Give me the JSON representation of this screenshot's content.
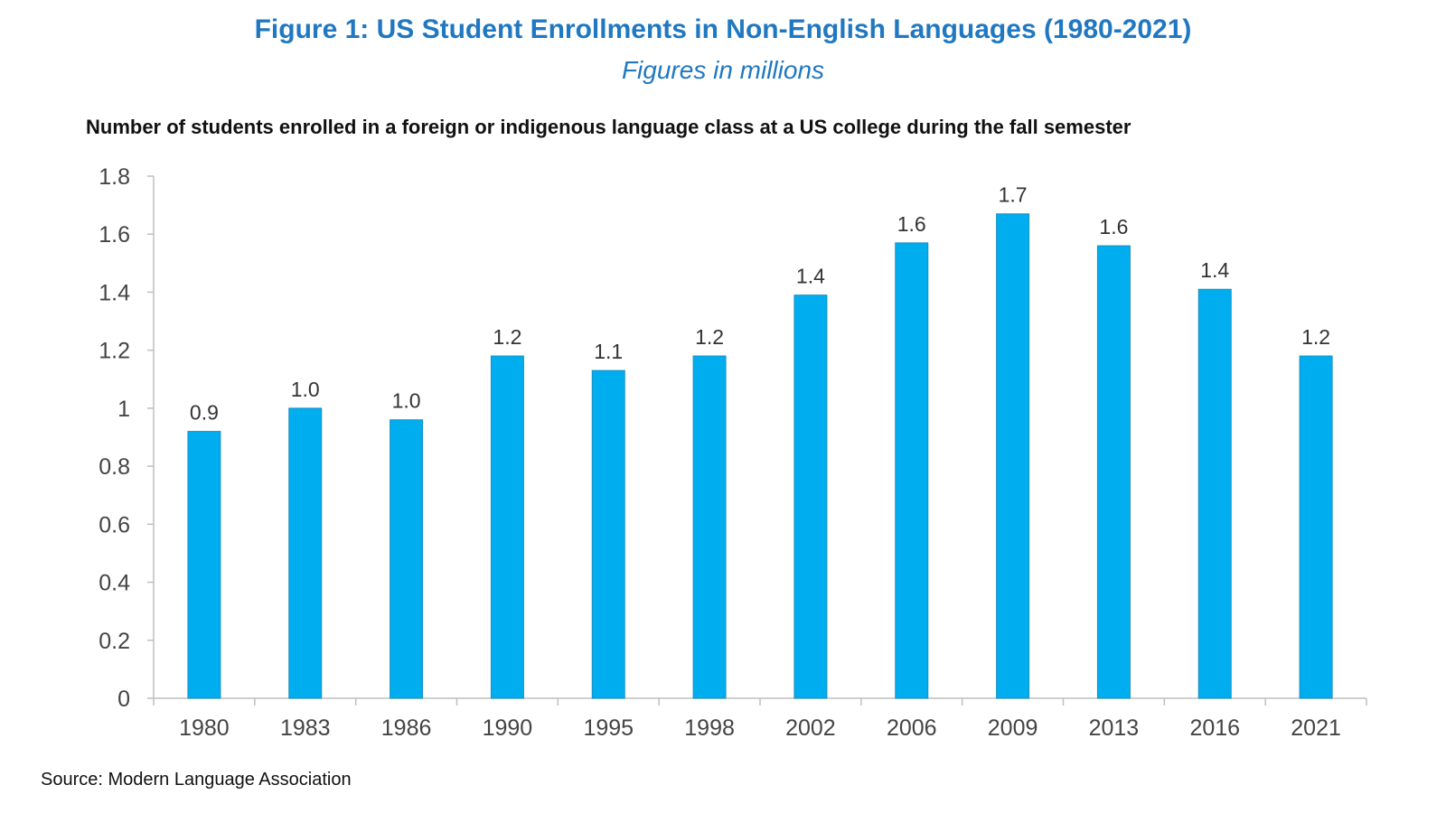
{
  "figure": {
    "title": "Figure 1: US Student Enrollments in Non-English Languages (1980-2021)",
    "subtitle": "Figures in millions",
    "source": "Source: Modern Language Association"
  },
  "chart_data": {
    "type": "bar",
    "title": "Number of students enrolled in a foreign or indigenous language class at a US college during the fall semester",
    "xlabel": "",
    "ylabel": "",
    "categories": [
      "1980",
      "1983",
      "1986",
      "1990",
      "1995",
      "1998",
      "2002",
      "2006",
      "2009",
      "2013",
      "2016",
      "2021"
    ],
    "values": [
      0.92,
      1.0,
      0.96,
      1.18,
      1.13,
      1.18,
      1.39,
      1.57,
      1.67,
      1.56,
      1.41,
      1.18
    ],
    "data_labels": [
      "0.9",
      "1.0",
      "1.0",
      "1.2",
      "1.1",
      "1.2",
      "1.4",
      "1.6",
      "1.7",
      "1.6",
      "1.4",
      "1.2"
    ],
    "ylim": [
      0,
      1.8
    ],
    "yticks": [
      0,
      0.2,
      0.4,
      0.6,
      0.8,
      1,
      1.2,
      1.4,
      1.6,
      1.8
    ],
    "ytick_labels": [
      "0",
      "0.2",
      "0.4",
      "0.6",
      "0.8",
      "1",
      "1.2",
      "1.4",
      "1.6",
      "1.8"
    ],
    "grid": false,
    "legend": "none",
    "bar_color": "#00aeef",
    "axis_color": "#bfbfbf"
  }
}
